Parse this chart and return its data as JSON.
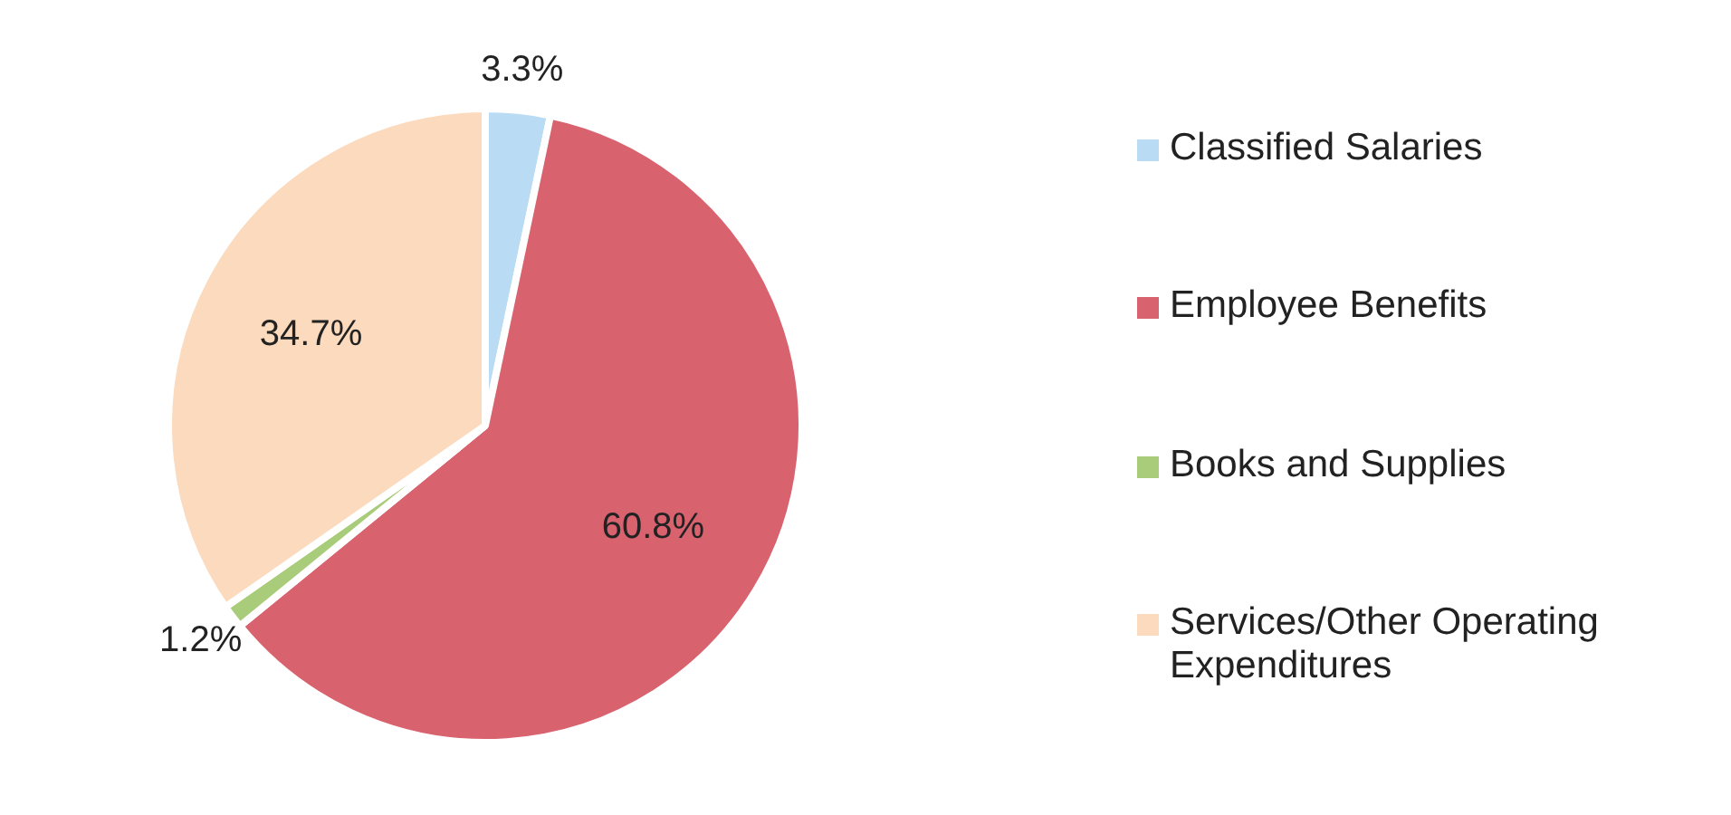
{
  "chart_data": {
    "type": "pie",
    "categories": [
      "Classified Salaries",
      "Employee Benefits",
      "Books and Supplies",
      "Services/Other Operating Expenditures"
    ],
    "values": [
      3.3,
      60.8,
      1.2,
      34.7
    ],
    "value_labels": [
      "3.3%",
      "60.8%",
      "1.2%",
      "34.7%"
    ],
    "colors": [
      "#b9dcf4",
      "#d9626f",
      "#a9cc7a",
      "#fbdabe"
    ],
    "legend": "right"
  }
}
